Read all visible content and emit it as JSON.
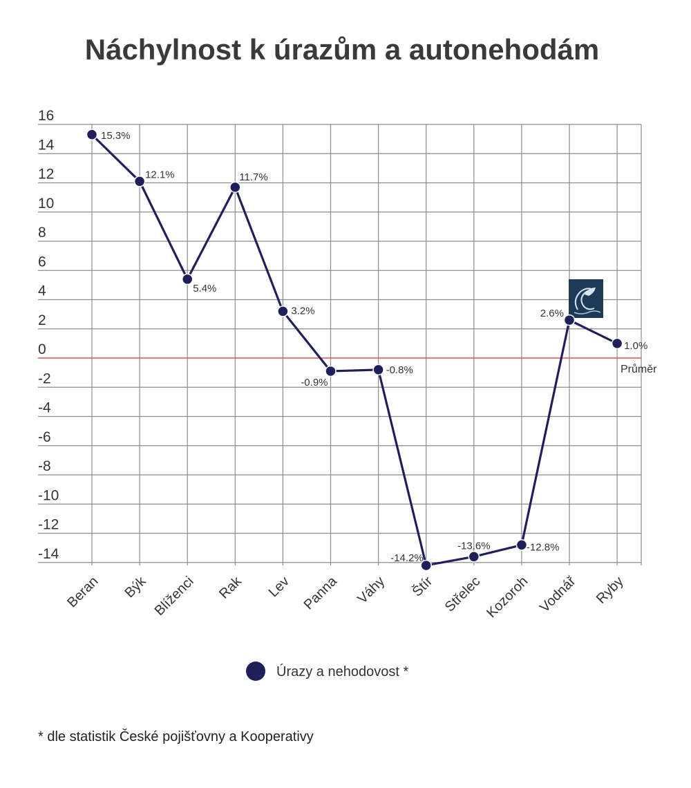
{
  "chart_data": {
    "type": "line",
    "title": "Náchylnost k úrazům a autonehodám",
    "categories": [
      "Beran",
      "Býk",
      "Blíženci",
      "Rak",
      "Lev",
      "Panna",
      "Váhy",
      "Štír",
      "Střelec",
      "Kozoroh",
      "Vodnář",
      "Ryby"
    ],
    "series": [
      {
        "name": "Úrazy a nehodovost *",
        "values": [
          15.3,
          12.1,
          5.4,
          11.7,
          3.2,
          -0.9,
          -0.8,
          -14.2,
          -13.6,
          -12.8,
          2.6,
          1.0
        ],
        "labels": [
          "15.3%",
          "12.1%",
          "5.4%",
          "11.7%",
          "3.2%",
          "-0.9%",
          "-0.8%",
          "-14.2%",
          "-13.6%",
          "-12.8%",
          "2.6%",
          "1.0%"
        ],
        "color": "#1f1f5c"
      }
    ],
    "yticks": [
      16,
      14,
      12,
      10,
      8,
      6,
      4,
      2,
      0,
      -2,
      -4,
      -6,
      -8,
      -10,
      -12,
      -14
    ],
    "ylim": [
      -14,
      16
    ],
    "grid": true,
    "reference_line": {
      "value": 0,
      "label": "Průměr",
      "color": "#d9534f"
    },
    "legend": {
      "position": "bottom",
      "label": "Úrazy a nehodovost *"
    },
    "highlight_icon": "aquarius-icon",
    "footnote": "* dle statistik České pojišťovny a Kooperativy"
  }
}
